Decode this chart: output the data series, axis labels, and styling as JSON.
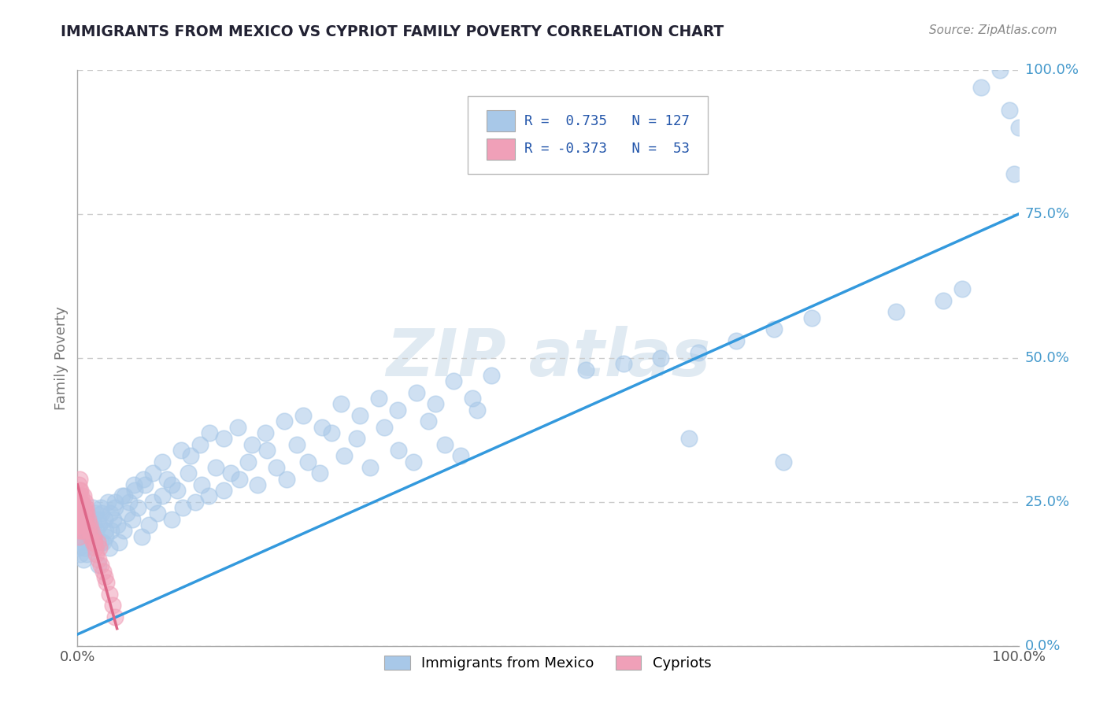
{
  "title": "IMMIGRANTS FROM MEXICO VS CYPRIOT FAMILY POVERTY CORRELATION CHART",
  "source": "Source: ZipAtlas.com",
  "ylabel": "Family Poverty",
  "xlim": [
    0,
    1
  ],
  "ylim": [
    0,
    1
  ],
  "ytick_labels": [
    "0.0%",
    "25.0%",
    "50.0%",
    "75.0%",
    "100.0%"
  ],
  "ytick_values": [
    0.0,
    0.25,
    0.5,
    0.75,
    1.0
  ],
  "legend_text1": "R =  0.735   N = 127",
  "legend_text2": "R = -0.373   N =  53",
  "blue_color": "#a8c8e8",
  "pink_color": "#f0a0b8",
  "line_blue_color": "#3399dd",
  "line_pink_color": "#dd6688",
  "title_color": "#222233",
  "axis_label_color": "#777777",
  "grid_color": "#cccccc",
  "right_label_color": "#4499cc",
  "watermark_color": "#e0eaf2",
  "blue_scatter_x": [
    0.001,
    0.002,
    0.003,
    0.004,
    0.004,
    0.005,
    0.006,
    0.007,
    0.008,
    0.009,
    0.01,
    0.011,
    0.012,
    0.013,
    0.014,
    0.015,
    0.016,
    0.017,
    0.018,
    0.019,
    0.02,
    0.021,
    0.022,
    0.023,
    0.025,
    0.026,
    0.027,
    0.029,
    0.03,
    0.032,
    0.034,
    0.036,
    0.038,
    0.04,
    0.042,
    0.044,
    0.047,
    0.049,
    0.052,
    0.055,
    0.058,
    0.061,
    0.064,
    0.068,
    0.072,
    0.076,
    0.08,
    0.085,
    0.09,
    0.095,
    0.1,
    0.106,
    0.112,
    0.118,
    0.125,
    0.132,
    0.139,
    0.147,
    0.155,
    0.163,
    0.172,
    0.181,
    0.191,
    0.201,
    0.211,
    0.222,
    0.233,
    0.245,
    0.257,
    0.27,
    0.283,
    0.297,
    0.311,
    0.326,
    0.341,
    0.357,
    0.373,
    0.39,
    0.407,
    0.425,
    0.025,
    0.03,
    0.035,
    0.04,
    0.05,
    0.06,
    0.07,
    0.08,
    0.09,
    0.1,
    0.11,
    0.12,
    0.13,
    0.14,
    0.155,
    0.17,
    0.185,
    0.2,
    0.22,
    0.24,
    0.26,
    0.28,
    0.3,
    0.32,
    0.34,
    0.36,
    0.38,
    0.4,
    0.42,
    0.44,
    0.54,
    0.58,
    0.62,
    0.66,
    0.7,
    0.74,
    0.78,
    0.87,
    0.92,
    0.94,
    0.65,
    0.75,
    0.96,
    0.98,
    0.99,
    0.995,
    1.0
  ],
  "blue_scatter_y": [
    0.17,
    0.19,
    0.16,
    0.21,
    0.18,
    0.22,
    0.15,
    0.2,
    0.17,
    0.23,
    0.16,
    0.19,
    0.18,
    0.22,
    0.2,
    0.19,
    0.24,
    0.21,
    0.18,
    0.23,
    0.2,
    0.22,
    0.14,
    0.21,
    0.24,
    0.23,
    0.18,
    0.22,
    0.19,
    0.25,
    0.17,
    0.2,
    0.22,
    0.24,
    0.21,
    0.18,
    0.26,
    0.2,
    0.23,
    0.25,
    0.22,
    0.27,
    0.24,
    0.19,
    0.28,
    0.21,
    0.25,
    0.23,
    0.26,
    0.29,
    0.22,
    0.27,
    0.24,
    0.3,
    0.25,
    0.28,
    0.26,
    0.31,
    0.27,
    0.3,
    0.29,
    0.32,
    0.28,
    0.34,
    0.31,
    0.29,
    0.35,
    0.32,
    0.3,
    0.37,
    0.33,
    0.36,
    0.31,
    0.38,
    0.34,
    0.32,
    0.39,
    0.35,
    0.33,
    0.41,
    0.18,
    0.2,
    0.23,
    0.25,
    0.26,
    0.28,
    0.29,
    0.3,
    0.32,
    0.28,
    0.34,
    0.33,
    0.35,
    0.37,
    0.36,
    0.38,
    0.35,
    0.37,
    0.39,
    0.4,
    0.38,
    0.42,
    0.4,
    0.43,
    0.41,
    0.44,
    0.42,
    0.46,
    0.43,
    0.47,
    0.48,
    0.49,
    0.5,
    0.51,
    0.53,
    0.55,
    0.57,
    0.58,
    0.6,
    0.62,
    0.36,
    0.32,
    0.97,
    1.0,
    0.93,
    0.82,
    0.9
  ],
  "pink_scatter_x": [
    0.001,
    0.001,
    0.001,
    0.001,
    0.001,
    0.002,
    0.002,
    0.002,
    0.002,
    0.002,
    0.002,
    0.003,
    0.003,
    0.003,
    0.003,
    0.004,
    0.004,
    0.004,
    0.004,
    0.005,
    0.005,
    0.005,
    0.006,
    0.006,
    0.006,
    0.007,
    0.007,
    0.008,
    0.008,
    0.009,
    0.009,
    0.01,
    0.01,
    0.011,
    0.012,
    0.013,
    0.014,
    0.015,
    0.016,
    0.017,
    0.018,
    0.019,
    0.02,
    0.021,
    0.022,
    0.023,
    0.025,
    0.027,
    0.029,
    0.031,
    0.034,
    0.037,
    0.04
  ],
  "pink_scatter_y": [
    0.23,
    0.26,
    0.21,
    0.28,
    0.19,
    0.25,
    0.22,
    0.27,
    0.2,
    0.24,
    0.29,
    0.21,
    0.25,
    0.23,
    0.27,
    0.22,
    0.26,
    0.2,
    0.24,
    0.21,
    0.25,
    0.23,
    0.22,
    0.26,
    0.2,
    0.24,
    0.21,
    0.23,
    0.25,
    0.22,
    0.24,
    0.21,
    0.23,
    0.22,
    0.2,
    0.21,
    0.19,
    0.2,
    0.18,
    0.19,
    0.18,
    0.17,
    0.16,
    0.18,
    0.15,
    0.17,
    0.14,
    0.13,
    0.12,
    0.11,
    0.09,
    0.07,
    0.05
  ],
  "blue_line_x0": 0.0,
  "blue_line_y0": 0.02,
  "blue_line_x1": 1.0,
  "blue_line_y1": 0.75,
  "pink_line_x0": 0.0,
  "pink_line_y0": 0.28,
  "pink_line_x1": 0.042,
  "pink_line_y1": 0.03
}
